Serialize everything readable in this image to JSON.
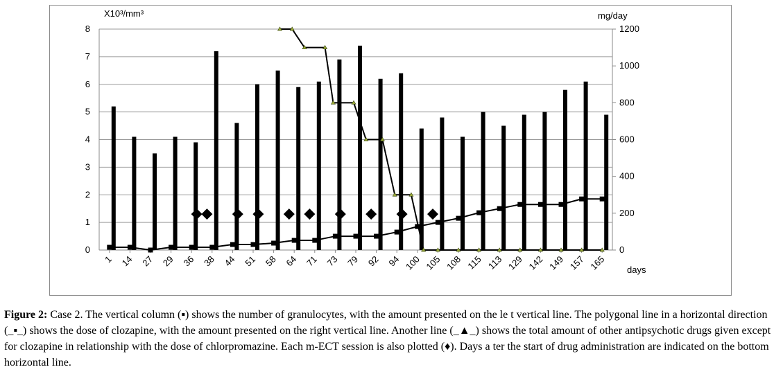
{
  "chart_data": {
    "type": "bar",
    "left_axis_unit": "X10³/mm³",
    "right_axis_unit": "mg/day",
    "x_axis_unit": "days",
    "left_ylim": [
      0,
      8
    ],
    "left_yticks": [
      "0",
      "1",
      "2",
      "3",
      "4",
      "5",
      "6",
      "7",
      "8"
    ],
    "right_ylim": [
      0,
      1200
    ],
    "right_yticks": [
      "0",
      "200",
      "400",
      "600",
      "800",
      "1000",
      "1200"
    ],
    "grid": "horizontal",
    "categories": [
      "1",
      "14",
      "27",
      "29",
      "36",
      "38",
      "44",
      "51",
      "58",
      "64",
      "71",
      "73",
      "79",
      "92",
      "94",
      "100",
      "105",
      "108",
      "115",
      "113",
      "129",
      "142",
      "149",
      "157",
      "165"
    ],
    "granulocyte_bars": [
      5.2,
      4.1,
      3.5,
      4.1,
      3.9,
      7.2,
      4.6,
      6.0,
      6.5,
      5.9,
      6.1,
      6.9,
      7.4,
      6.2,
      6.4,
      4.4,
      4.8,
      4.1,
      5.0,
      4.5,
      4.9,
      5.0,
      5.8,
      6.1,
      4.9
    ],
    "clozapine_line": [
      0.1,
      0.1,
      0.0,
      0.1,
      0.1,
      0.1,
      0.2,
      0.2,
      0.25,
      0.35,
      0.35,
      0.5,
      0.5,
      0.5,
      0.65,
      0.85,
      1.0,
      1.15,
      1.35,
      1.5,
      1.65,
      1.65,
      1.65,
      1.85,
      1.85
    ],
    "other_antipsychotics_line": [
      {
        "x": 8.8,
        "y": 1200
      },
      {
        "x": 9.4,
        "y": 1200
      },
      {
        "x": 10.0,
        "y": 1100
      },
      {
        "x": 11.0,
        "y": 1100
      },
      {
        "x": 11.4,
        "y": 800
      },
      {
        "x": 12.4,
        "y": 800
      },
      {
        "x": 13.0,
        "y": 600
      },
      {
        "x": 13.8,
        "y": 600
      },
      {
        "x": 14.4,
        "y": 300
      },
      {
        "x": 15.2,
        "y": 300
      },
      {
        "x": 15.8,
        "y": 0
      },
      {
        "x": 16.5,
        "y": 0
      },
      {
        "x": 17.5,
        "y": 0
      },
      {
        "x": 18.5,
        "y": 0
      },
      {
        "x": 19.5,
        "y": 0
      },
      {
        "x": 20.5,
        "y": 0
      },
      {
        "x": 21.5,
        "y": 0
      },
      {
        "x": 22.5,
        "y": 0
      },
      {
        "x": 23.5,
        "y": 0
      },
      {
        "x": 24.5,
        "y": 0
      }
    ],
    "ect_sessions": [
      {
        "x": 4.75,
        "y": 1.3
      },
      {
        "x": 5.25,
        "y": 1.3
      },
      {
        "x": 6.75,
        "y": 1.3
      },
      {
        "x": 7.75,
        "y": 1.3
      },
      {
        "x": 9.25,
        "y": 1.3
      },
      {
        "x": 10.25,
        "y": 1.3
      },
      {
        "x": 11.75,
        "y": 1.3
      },
      {
        "x": 13.25,
        "y": 1.3
      },
      {
        "x": 14.75,
        "y": 1.3
      },
      {
        "x": 16.25,
        "y": 1.3
      }
    ]
  },
  "caption": {
    "label": "Figure 2:",
    "text": " Case 2. The vertical column (▪) shows the number of granulocytes, with the amount presented on the le t vertical line. The polygonal line in a horizontal direction (_▪_) shows the dose of clozapine, with the amount presented on the right vertical line. Another line (_▲_) shows the total amount of other antipsychotic drugs given except for clozapine in relationship with the dose of chlorpromazine. Each m-ECT session is also plotted (♦). Days a ter the start of drug administration are indicated on the bottom horizontal line."
  }
}
